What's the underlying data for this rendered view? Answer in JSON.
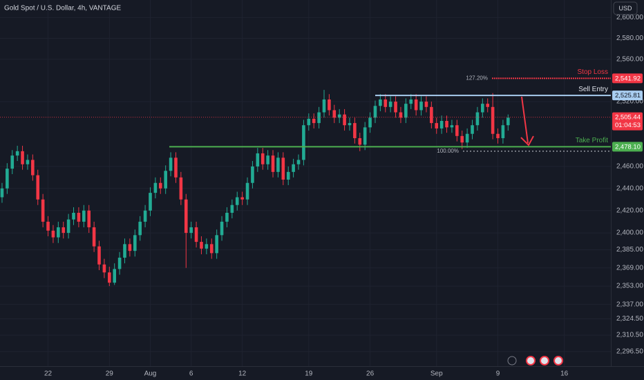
{
  "header": {
    "title": "Gold Spot / U.S. Dollar, 4h, VANTAGE",
    "currency": "USD"
  },
  "chart_data": {
    "type": "candlestick",
    "log_scale": true,
    "grid": true,
    "ylim": [
      2284,
      2617
    ],
    "yticks": [
      {
        "value": 2600,
        "label": "2,600.00"
      },
      {
        "value": 2580,
        "label": "2,580.00"
      },
      {
        "value": 2560,
        "label": "2,560.00"
      },
      {
        "value": 2520,
        "label": "2,520.00"
      },
      {
        "value": 2460,
        "label": "2,460.00"
      },
      {
        "value": 2440,
        "label": "2,440.00"
      },
      {
        "value": 2420,
        "label": "2,420.00"
      },
      {
        "value": 2400,
        "label": "2,400.00"
      },
      {
        "value": 2385,
        "label": "2,385.00"
      },
      {
        "value": 2369,
        "label": "2,369.00"
      },
      {
        "value": 2353,
        "label": "2,353.00"
      },
      {
        "value": 2337,
        "label": "2,337.00"
      },
      {
        "value": 2324.5,
        "label": "2,324.50"
      },
      {
        "value": 2310.5,
        "label": "2,310.50"
      },
      {
        "value": 2296.5,
        "label": "2,296.50"
      }
    ],
    "xlim": [
      -0.4,
      119.1
    ],
    "xticks": [
      {
        "value": 9,
        "label": "22"
      },
      {
        "value": 21,
        "label": "29"
      },
      {
        "value": 29,
        "label": "Aug"
      },
      {
        "value": 37,
        "label": "6"
      },
      {
        "value": 47,
        "label": "12"
      },
      {
        "value": 60,
        "label": "19"
      },
      {
        "value": 72,
        "label": "26"
      },
      {
        "value": 85,
        "label": "Sep"
      },
      {
        "value": 97,
        "label": "9"
      },
      {
        "value": 110,
        "label": "16"
      }
    ],
    "up_color": "#22ab94",
    "down_color": "#f23645",
    "open": [
      2432,
      2440,
      2458,
      2470,
      2474,
      2462,
      2466,
      2452,
      2430,
      2410,
      2402,
      2396,
      2405,
      2400,
      2412,
      2418,
      2410,
      2420,
      2405,
      2388,
      2372,
      2365,
      2356,
      2368,
      2378,
      2390,
      2384,
      2398,
      2410,
      2420,
      2436,
      2445,
      2440,
      2456,
      2468,
      2450,
      2430,
      2400,
      2405,
      2392,
      2386,
      2390,
      2382,
      2398,
      2410,
      2418,
      2425,
      2432,
      2430,
      2445,
      2460,
      2472,
      2462,
      2470,
      2455,
      2468,
      2448,
      2455,
      2462,
      2466,
      2498,
      2504,
      2500,
      2510,
      2522,
      2512,
      2505,
      2508,
      2498,
      2500,
      2486,
      2480,
      2496,
      2505,
      2516,
      2522,
      2515,
      2520,
      2510,
      2505,
      2518,
      2522,
      2512,
      2520,
      2515,
      2500,
      2495,
      2502,
      2496,
      2498,
      2488,
      2482,
      2490,
      2498,
      2510,
      2518,
      2515,
      2490,
      2486,
      2498
    ],
    "high": [
      2445,
      2463,
      2475,
      2479,
      2479,
      2471,
      2471,
      2457,
      2435,
      2415,
      2407,
      2410,
      2410,
      2417,
      2423,
      2423,
      2425,
      2425,
      2410,
      2393,
      2377,
      2370,
      2373,
      2383,
      2395,
      2395,
      2403,
      2415,
      2425,
      2441,
      2450,
      2450,
      2461,
      2473,
      2473,
      2455,
      2435,
      2410,
      2410,
      2397,
      2395,
      2395,
      2403,
      2415,
      2423,
      2430,
      2437,
      2437,
      2450,
      2465,
      2477,
      2477,
      2475,
      2475,
      2473,
      2473,
      2460,
      2467,
      2471,
      2503,
      2509,
      2509,
      2515,
      2531,
      2527,
      2517,
      2513,
      2513,
      2505,
      2505,
      2491,
      2501,
      2510,
      2521,
      2527,
      2527,
      2525,
      2525,
      2515,
      2523,
      2527,
      2527,
      2525,
      2525,
      2520,
      2505,
      2507,
      2507,
      2503,
      2503,
      2493,
      2495,
      2503,
      2515,
      2523,
      2523,
      2528,
      2495,
      2503,
      2508
    ],
    "low": [
      2427,
      2435,
      2453,
      2465,
      2457,
      2457,
      2447,
      2425,
      2405,
      2397,
      2391,
      2391,
      2395,
      2395,
      2407,
      2405,
      2405,
      2400,
      2383,
      2367,
      2360,
      2353,
      2354,
      2363,
      2373,
      2379,
      2379,
      2393,
      2405,
      2415,
      2431,
      2435,
      2435,
      2451,
      2445,
      2425,
      2369,
      2395,
      2387,
      2381,
      2381,
      2377,
      2377,
      2393,
      2405,
      2413,
      2420,
      2425,
      2425,
      2440,
      2455,
      2457,
      2457,
      2450,
      2450,
      2443,
      2443,
      2450,
      2457,
      2461,
      2493,
      2495,
      2495,
      2505,
      2507,
      2500,
      2500,
      2493,
      2493,
      2481,
      2474,
      2475,
      2491,
      2500,
      2511,
      2510,
      2510,
      2505,
      2500,
      2500,
      2513,
      2507,
      2507,
      2510,
      2495,
      2490,
      2490,
      2491,
      2491,
      2483,
      2476,
      2477,
      2485,
      2493,
      2505,
      2510,
      2485,
      2481,
      2481,
      2493
    ],
    "close": [
      2440,
      2458,
      2470,
      2474,
      2462,
      2466,
      2452,
      2430,
      2410,
      2402,
      2396,
      2405,
      2400,
      2412,
      2418,
      2410,
      2420,
      2405,
      2388,
      2372,
      2365,
      2356,
      2368,
      2378,
      2390,
      2384,
      2398,
      2410,
      2420,
      2436,
      2445,
      2440,
      2456,
      2468,
      2450,
      2430,
      2400,
      2405,
      2392,
      2386,
      2390,
      2382,
      2398,
      2410,
      2418,
      2425,
      2432,
      2430,
      2445,
      2460,
      2472,
      2462,
      2470,
      2455,
      2468,
      2448,
      2455,
      2462,
      2466,
      2498,
      2504,
      2500,
      2510,
      2522,
      2512,
      2505,
      2508,
      2498,
      2500,
      2486,
      2480,
      2496,
      2505,
      2516,
      2522,
      2515,
      2520,
      2510,
      2505,
      2518,
      2522,
      2512,
      2520,
      2515,
      2500,
      2495,
      2502,
      2496,
      2498,
      2488,
      2482,
      2490,
      2498,
      2510,
      2518,
      2515,
      2490,
      2486,
      2498,
      2505
    ],
    "levels": [
      {
        "name": "Stop Loss",
        "value": 2541.92,
        "value_label": "2,541.92",
        "color": "#f23645"
      },
      {
        "name": "Sell Entry",
        "value": 2525.81,
        "value_label": "2,525.81",
        "color": "#a9cdf0"
      },
      {
        "name": "Take Profit",
        "value": 2478.1,
        "value_label": "2,478.10",
        "color": "#4caf50"
      }
    ],
    "fib_levels": [
      {
        "label": "127.20%",
        "value": 2541.92
      },
      {
        "label": "100.00%",
        "value": 2474
      }
    ],
    "last_price": {
      "value": 2505.44,
      "value_label": "2,505.44",
      "countdown": "01:04:53",
      "color": "#f23645"
    }
  }
}
